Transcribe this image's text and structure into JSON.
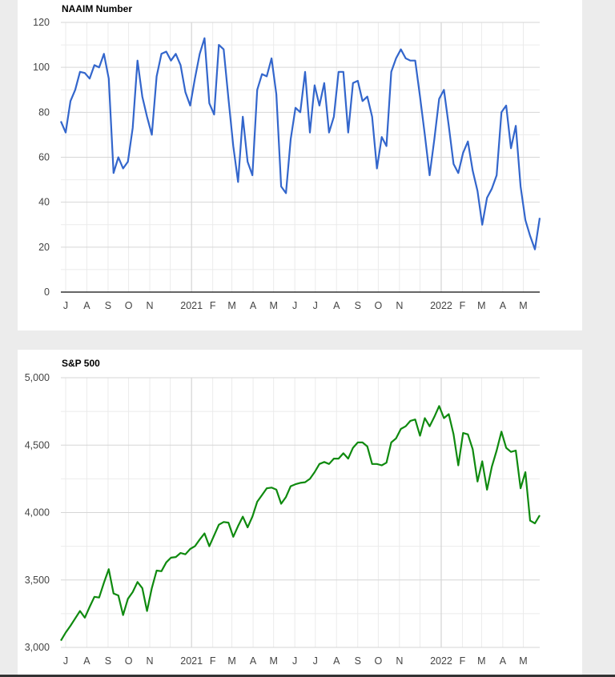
{
  "chart_data": [
    {
      "type": "line",
      "title": "NAAIM Number",
      "color": "#3366cc",
      "ylim": [
        0,
        120
      ],
      "y_ticks": [
        0,
        20,
        40,
        60,
        80,
        100,
        120
      ],
      "y_tick_labels": [
        "0",
        "20",
        "40",
        "60",
        "80",
        "100",
        "120"
      ],
      "grid": true,
      "x": [
        "2020-06-24",
        "2020-07-01",
        "2020-07-08",
        "2020-07-15",
        "2020-07-22",
        "2020-07-29",
        "2020-08-05",
        "2020-08-12",
        "2020-08-19",
        "2020-08-26",
        "2020-09-02",
        "2020-09-09",
        "2020-09-16",
        "2020-09-23",
        "2020-09-30",
        "2020-10-07",
        "2020-10-14",
        "2020-10-21",
        "2020-10-28",
        "2020-11-04",
        "2020-11-11",
        "2020-11-18",
        "2020-11-25",
        "2020-12-02",
        "2020-12-09",
        "2020-12-16",
        "2020-12-23",
        "2020-12-30",
        "2021-01-06",
        "2021-01-13",
        "2021-01-20",
        "2021-01-27",
        "2021-02-03",
        "2021-02-10",
        "2021-02-17",
        "2021-02-24",
        "2021-03-03",
        "2021-03-10",
        "2021-03-17",
        "2021-03-24",
        "2021-03-31",
        "2021-04-07",
        "2021-04-14",
        "2021-04-21",
        "2021-04-28",
        "2021-05-05",
        "2021-05-12",
        "2021-05-19",
        "2021-05-26",
        "2021-06-02",
        "2021-06-09",
        "2021-06-16",
        "2021-06-23",
        "2021-06-30",
        "2021-07-07",
        "2021-07-14",
        "2021-07-21",
        "2021-07-28",
        "2021-08-04",
        "2021-08-11",
        "2021-08-18",
        "2021-08-25",
        "2021-09-01",
        "2021-09-08",
        "2021-09-15",
        "2021-09-22",
        "2021-09-29",
        "2021-10-06",
        "2021-10-13",
        "2021-10-20",
        "2021-10-27",
        "2021-11-03",
        "2021-11-10",
        "2021-11-17",
        "2021-11-24",
        "2021-12-01",
        "2021-12-08",
        "2021-12-15",
        "2021-12-22",
        "2021-12-29",
        "2022-01-05",
        "2022-01-12",
        "2022-01-19",
        "2022-01-26",
        "2022-02-02",
        "2022-02-09",
        "2022-02-16",
        "2022-02-23",
        "2022-03-02",
        "2022-03-09",
        "2022-03-16",
        "2022-03-23",
        "2022-03-30",
        "2022-04-06",
        "2022-04-13",
        "2022-04-20",
        "2022-04-27",
        "2022-05-04",
        "2022-05-11",
        "2022-05-18",
        "2022-05-25"
      ],
      "values": [
        76,
        71,
        85,
        90,
        98,
        97.5,
        95,
        101,
        100,
        106,
        95,
        53,
        60,
        55,
        58,
        73,
        103,
        87,
        78,
        70,
        96,
        106,
        107,
        103,
        106,
        101,
        89,
        83,
        95,
        106,
        113,
        84,
        79,
        110,
        108,
        86,
        65,
        49,
        78,
        58,
        52,
        90,
        97,
        96,
        104,
        88,
        47,
        44,
        68,
        82,
        80,
        98,
        71,
        92,
        83,
        93,
        71,
        78,
        98,
        98,
        71,
        93,
        94,
        85,
        87,
        78,
        55,
        69,
        65,
        98,
        104,
        108,
        104,
        103,
        103,
        87,
        70,
        52,
        68,
        86,
        90,
        74,
        57,
        53,
        62,
        67,
        54,
        45,
        30,
        42,
        46,
        52,
        80,
        83,
        64,
        74,
        47,
        32,
        25,
        19,
        33
      ]
    },
    {
      "type": "line",
      "title": "S&P 500",
      "color": "#0f8a0f",
      "ylim": [
        3000,
        5000
      ],
      "y_ticks": [
        3000,
        3500,
        4000,
        4500,
        5000
      ],
      "y_tick_labels": [
        "3,000",
        "3,500",
        "4,000",
        "4,500",
        "5,000"
      ],
      "grid": true,
      "x": [
        "2020-06-24",
        "2020-07-01",
        "2020-07-08",
        "2020-07-15",
        "2020-07-22",
        "2020-07-29",
        "2020-08-05",
        "2020-08-12",
        "2020-08-19",
        "2020-08-26",
        "2020-09-02",
        "2020-09-09",
        "2020-09-16",
        "2020-09-23",
        "2020-09-30",
        "2020-10-07",
        "2020-10-14",
        "2020-10-21",
        "2020-10-28",
        "2020-11-04",
        "2020-11-11",
        "2020-11-18",
        "2020-11-25",
        "2020-12-02",
        "2020-12-09",
        "2020-12-16",
        "2020-12-23",
        "2020-12-30",
        "2021-01-06",
        "2021-01-13",
        "2021-01-20",
        "2021-01-27",
        "2021-02-03",
        "2021-02-10",
        "2021-02-17",
        "2021-02-24",
        "2021-03-03",
        "2021-03-10",
        "2021-03-17",
        "2021-03-24",
        "2021-03-31",
        "2021-04-07",
        "2021-04-14",
        "2021-04-21",
        "2021-04-28",
        "2021-05-05",
        "2021-05-12",
        "2021-05-19",
        "2021-05-26",
        "2021-06-02",
        "2021-06-09",
        "2021-06-16",
        "2021-06-23",
        "2021-06-30",
        "2021-07-07",
        "2021-07-14",
        "2021-07-21",
        "2021-07-28",
        "2021-08-04",
        "2021-08-11",
        "2021-08-18",
        "2021-08-25",
        "2021-09-01",
        "2021-09-08",
        "2021-09-15",
        "2021-09-22",
        "2021-09-29",
        "2021-10-06",
        "2021-10-13",
        "2021-10-20",
        "2021-10-27",
        "2021-11-03",
        "2021-11-10",
        "2021-11-17",
        "2021-11-24",
        "2021-12-01",
        "2021-12-08",
        "2021-12-15",
        "2021-12-22",
        "2021-12-29",
        "2022-01-05",
        "2022-01-12",
        "2022-01-19",
        "2022-01-26",
        "2022-02-02",
        "2022-02-09",
        "2022-02-16",
        "2022-02-23",
        "2022-03-02",
        "2022-03-09",
        "2022-03-16",
        "2022-03-23",
        "2022-03-30",
        "2022-04-06",
        "2022-04-13",
        "2022-04-20",
        "2022-04-27",
        "2022-05-04",
        "2022-05-11",
        "2022-05-18",
        "2022-05-25"
      ],
      "values": [
        3050,
        3110,
        3160,
        3215,
        3270,
        3220,
        3300,
        3375,
        3370,
        3480,
        3580,
        3400,
        3385,
        3240,
        3360,
        3410,
        3485,
        3440,
        3270,
        3440,
        3570,
        3565,
        3630,
        3665,
        3670,
        3700,
        3690,
        3730,
        3750,
        3800,
        3845,
        3750,
        3830,
        3910,
        3930,
        3925,
        3820,
        3900,
        3970,
        3890,
        3970,
        4080,
        4130,
        4180,
        4185,
        4170,
        4065,
        4115,
        4195,
        4210,
        4220,
        4225,
        4250,
        4300,
        4360,
        4375,
        4360,
        4400,
        4400,
        4440,
        4400,
        4480,
        4520,
        4520,
        4490,
        4360,
        4360,
        4350,
        4370,
        4520,
        4550,
        4620,
        4640,
        4680,
        4690,
        4570,
        4700,
        4640,
        4710,
        4790,
        4700,
        4730,
        4580,
        4350,
        4590,
        4580,
        4470,
        4230,
        4380,
        4170,
        4340,
        4460,
        4600,
        4480,
        4450,
        4460,
        4180,
        4300,
        3940,
        3920,
        3980
      ]
    }
  ],
  "x_axis": {
    "ticks": [
      {
        "date": "2020-07-01",
        "label": "J"
      },
      {
        "date": "2020-08-01",
        "label": "A"
      },
      {
        "date": "2020-09-01",
        "label": "S"
      },
      {
        "date": "2020-10-01",
        "label": "O"
      },
      {
        "date": "2020-11-01",
        "label": "N"
      },
      {
        "date": "2020-12-01",
        "label": ""
      },
      {
        "date": "2021-01-01",
        "label": "2021",
        "major": true
      },
      {
        "date": "2021-02-01",
        "label": "F"
      },
      {
        "date": "2021-03-01",
        "label": "M"
      },
      {
        "date": "2021-04-01",
        "label": "A"
      },
      {
        "date": "2021-05-01",
        "label": "M"
      },
      {
        "date": "2021-06-01",
        "label": "J"
      },
      {
        "date": "2021-07-01",
        "label": "J"
      },
      {
        "date": "2021-08-01",
        "label": "A"
      },
      {
        "date": "2021-09-01",
        "label": "S"
      },
      {
        "date": "2021-10-01",
        "label": "O"
      },
      {
        "date": "2021-11-01",
        "label": "N"
      },
      {
        "date": "2021-12-01",
        "label": ""
      },
      {
        "date": "2022-01-01",
        "label": "2022",
        "major": true
      },
      {
        "date": "2022-02-01",
        "label": "F"
      },
      {
        "date": "2022-03-01",
        "label": "M"
      },
      {
        "date": "2022-04-01",
        "label": "A"
      },
      {
        "date": "2022-05-01",
        "label": "M"
      }
    ]
  }
}
